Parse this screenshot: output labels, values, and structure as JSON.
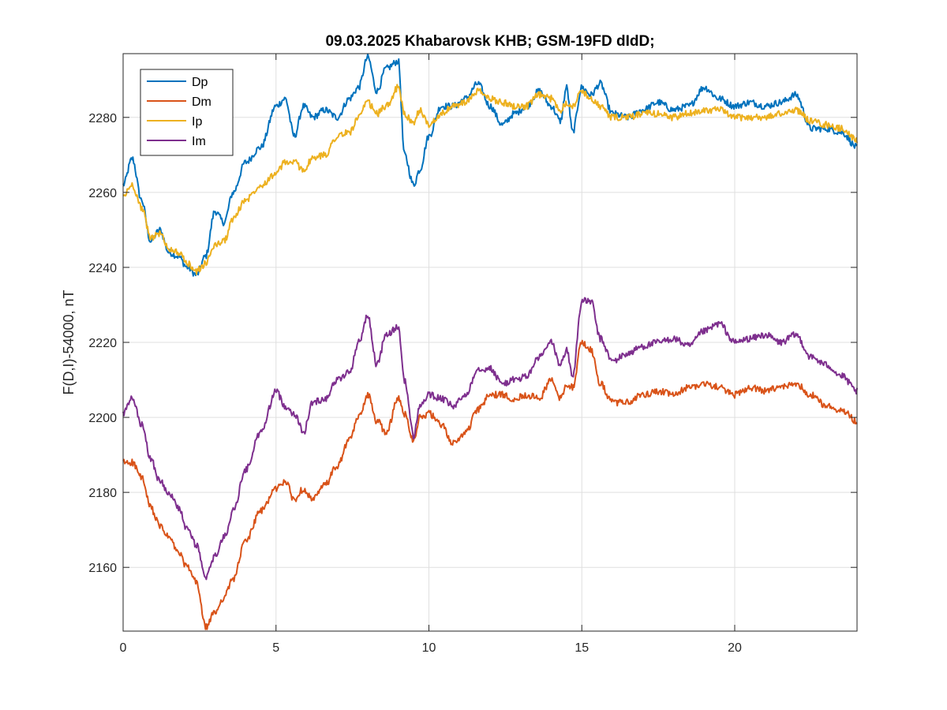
{
  "chart_data": {
    "type": "line",
    "title": "09.03.2025  Khabarovsk KHB; GSM-19FD dIdD;",
    "xlabel": "",
    "ylabel": "F(D,I)-54000, nT",
    "xlim": [
      0,
      24
    ],
    "ylim": [
      2143,
      2297
    ],
    "x_ticks": [
      0,
      5,
      10,
      15,
      20
    ],
    "y_ticks": [
      2160,
      2180,
      2200,
      2220,
      2240,
      2260,
      2280
    ],
    "grid": true,
    "legend_position": "top-left",
    "series": [
      {
        "name": "Dp",
        "color": "#0072BD",
        "x": [
          0,
          0.3,
          0.6,
          0.9,
          1.2,
          1.5,
          1.8,
          2.1,
          2.4,
          2.7,
          3.0,
          3.3,
          3.6,
          4.0,
          4.5,
          5.0,
          5.3,
          5.6,
          5.9,
          6.2,
          6.6,
          7.0,
          7.4,
          7.7,
          8.0,
          8.3,
          8.6,
          9.0,
          9.2,
          9.5,
          9.7,
          10.0,
          10.4,
          10.8,
          11.2,
          11.6,
          12.0,
          12.4,
          12.8,
          13.2,
          13.6,
          14.0,
          14.3,
          14.5,
          14.7,
          15.0,
          15.3,
          15.6,
          16.0,
          16.5,
          17.0,
          17.5,
          18.0,
          18.5,
          19.0,
          19.5,
          20.0,
          20.5,
          21.0,
          21.5,
          22.0,
          22.5,
          23.0,
          23.5,
          24.0
        ],
        "y": [
          2262,
          2269,
          2258,
          2247,
          2250,
          2244,
          2243,
          2240,
          2238,
          2243,
          2255,
          2252,
          2260,
          2268,
          2272,
          2283,
          2285,
          2275,
          2283,
          2280,
          2282,
          2280,
          2285,
          2288,
          2296,
          2287,
          2293,
          2295,
          2270,
          2262,
          2266,
          2275,
          2283,
          2283,
          2285,
          2289,
          2283,
          2278,
          2281,
          2283,
          2287,
          2283,
          2279,
          2288,
          2276,
          2288,
          2286,
          2289,
          2281,
          2280,
          2282,
          2284,
          2282,
          2283,
          2288,
          2285,
          2283,
          2284,
          2283,
          2284,
          2286,
          2277,
          2277,
          2276,
          2272
        ]
      },
      {
        "name": "Dm",
        "color": "#D95319",
        "x": [
          0,
          0.3,
          0.6,
          0.9,
          1.2,
          1.5,
          1.8,
          2.1,
          2.4,
          2.7,
          3.0,
          3.3,
          3.6,
          4.0,
          4.5,
          5.0,
          5.3,
          5.6,
          5.9,
          6.2,
          6.6,
          7.0,
          7.4,
          7.7,
          8.0,
          8.3,
          8.6,
          9.0,
          9.2,
          9.5,
          9.7,
          10.0,
          10.4,
          10.8,
          11.2,
          11.6,
          12.0,
          12.4,
          12.8,
          13.2,
          13.6,
          14.0,
          14.3,
          14.5,
          14.7,
          15.0,
          15.3,
          15.6,
          16.0,
          16.5,
          17.0,
          17.5,
          18.0,
          18.5,
          19.0,
          19.5,
          20.0,
          20.5,
          21.0,
          21.5,
          22.0,
          22.5,
          23.0,
          23.5,
          24.0
        ],
        "y": [
          2188,
          2188,
          2184,
          2176,
          2171,
          2168,
          2164,
          2160,
          2156,
          2144,
          2148,
          2152,
          2157,
          2167,
          2175,
          2181,
          2183,
          2178,
          2181,
          2178,
          2182,
          2187,
          2194,
          2200,
          2206,
          2199,
          2196,
          2205,
          2201,
          2194,
          2200,
          2201,
          2198,
          2193,
          2196,
          2202,
          2206,
          2206,
          2205,
          2206,
          2205,
          2210,
          2205,
          2209,
          2208,
          2220,
          2218,
          2209,
          2204,
          2204,
          2206,
          2207,
          2206,
          2208,
          2209,
          2208,
          2206,
          2208,
          2207,
          2208,
          2209,
          2206,
          2203,
          2202,
          2199
        ]
      },
      {
        "name": "Ip",
        "color": "#EDB120",
        "x": [
          0,
          0.3,
          0.6,
          0.9,
          1.2,
          1.5,
          1.8,
          2.1,
          2.4,
          2.7,
          3.0,
          3.3,
          3.6,
          4.0,
          4.5,
          5.0,
          5.3,
          5.6,
          5.9,
          6.2,
          6.6,
          7.0,
          7.4,
          7.7,
          8.0,
          8.3,
          8.6,
          9.0,
          9.2,
          9.5,
          9.7,
          10.0,
          10.4,
          10.8,
          11.2,
          11.6,
          12.0,
          12.4,
          12.8,
          13.2,
          13.6,
          14.0,
          14.3,
          14.5,
          14.7,
          15.0,
          15.3,
          15.6,
          16.0,
          16.5,
          17.0,
          17.5,
          18.0,
          18.5,
          19.0,
          19.5,
          20.0,
          20.5,
          21.0,
          21.5,
          22.0,
          22.5,
          23.0,
          23.5,
          24.0
        ],
        "y": [
          2259,
          2262,
          2256,
          2248,
          2249,
          2245,
          2244,
          2241,
          2239,
          2241,
          2246,
          2247,
          2253,
          2258,
          2262,
          2265,
          2268,
          2268,
          2266,
          2269,
          2270,
          2275,
          2276,
          2280,
          2284,
          2281,
          2283,
          2288,
          2281,
          2278,
          2282,
          2278,
          2281,
          2283,
          2284,
          2287,
          2285,
          2284,
          2283,
          2283,
          2286,
          2285,
          2282,
          2284,
          2283,
          2287,
          2285,
          2283,
          2280,
          2280,
          2281,
          2281,
          2280,
          2281,
          2282,
          2282,
          2280,
          2280,
          2280,
          2281,
          2282,
          2279,
          2278,
          2277,
          2274
        ]
      },
      {
        "name": "Im",
        "color": "#7E2F8E",
        "x": [
          0,
          0.3,
          0.6,
          0.9,
          1.2,
          1.5,
          1.8,
          2.1,
          2.4,
          2.7,
          3.0,
          3.3,
          3.6,
          4.0,
          4.5,
          5.0,
          5.3,
          5.6,
          5.9,
          6.2,
          6.6,
          7.0,
          7.4,
          7.7,
          8.0,
          8.3,
          8.6,
          9.0,
          9.2,
          9.5,
          9.7,
          10.0,
          10.4,
          10.8,
          11.2,
          11.6,
          12.0,
          12.4,
          12.8,
          13.2,
          13.6,
          14.0,
          14.3,
          14.5,
          14.7,
          15.0,
          15.3,
          15.6,
          16.0,
          16.5,
          17.0,
          17.5,
          18.0,
          18.5,
          19.0,
          19.5,
          20.0,
          20.5,
          21.0,
          21.5,
          22.0,
          22.5,
          23.0,
          23.5,
          24.0
        ],
        "y": [
          2201,
          2205,
          2198,
          2189,
          2183,
          2180,
          2176,
          2170,
          2166,
          2157,
          2163,
          2168,
          2175,
          2186,
          2196,
          2207,
          2203,
          2201,
          2196,
          2204,
          2205,
          2210,
          2212,
          2220,
          2227,
          2214,
          2222,
          2224,
          2210,
          2195,
          2203,
          2206,
          2205,
          2203,
          2206,
          2213,
          2213,
          2209,
          2210,
          2211,
          2216,
          2220,
          2214,
          2218,
          2211,
          2231,
          2231,
          2221,
          2215,
          2217,
          2219,
          2220,
          2221,
          2219,
          2223,
          2225,
          2220,
          2221,
          2222,
          2220,
          2222,
          2216,
          2214,
          2211,
          2207
        ]
      }
    ]
  }
}
